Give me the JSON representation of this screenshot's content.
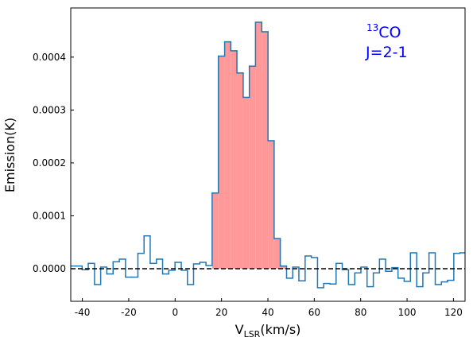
{
  "chart_data": {
    "type": "step",
    "x": [
      -44.1,
      -41.4,
      -38.8,
      -36.1,
      -33.4,
      -30.8,
      -28.1,
      -25.4,
      -22.7,
      -20.1,
      -17.4,
      -14.7,
      -12.1,
      -9.4,
      -6.7,
      -4.1,
      -1.4,
      1.3,
      4.0,
      6.6,
      9.3,
      12.0,
      14.6,
      17.3,
      20.0,
      22.7,
      25.3,
      28.0,
      30.7,
      33.3,
      36.0,
      38.7,
      41.4,
      44.0,
      46.7,
      49.4,
      52.0,
      54.7,
      57.4,
      60.1,
      62.7,
      65.4,
      68.1,
      70.7,
      73.4,
      76.1,
      78.8,
      81.4,
      84.1,
      86.8,
      89.4,
      92.1,
      94.8,
      97.4,
      100.1,
      102.8,
      105.5,
      108.1,
      110.8,
      113.5,
      116.1,
      118.8,
      121.5,
      124.1
    ],
    "series": [
      {
        "color": "#1f77b4",
        "values": [
          5e-06,
          5e-06,
          -2e-06,
          1e-05,
          -3e-05,
          3e-06,
          -1e-05,
          1.3e-05,
          1.8e-05,
          -1.6e-05,
          -1.6e-05,
          2.9e-05,
          6.2e-05,
          1e-05,
          1.8e-05,
          -1e-05,
          -3e-06,
          1.2e-05,
          -3e-06,
          -3e-05,
          9e-06,
          1.2e-05,
          6e-06,
          0.000143,
          0.000402,
          0.000429,
          0.000412,
          0.00037,
          0.000324,
          0.000383,
          0.000466,
          0.000448,
          0.000242,
          5.7e-05,
          5e-06,
          -1.8e-05,
          3e-06,
          -2.3e-05,
          2.4e-05,
          2.1e-05,
          -3.6e-05,
          -2.8e-05,
          -2.9e-05,
          1e-05,
          -2e-06,
          -3e-05,
          -8e-06,
          3e-06,
          -3.4e-05,
          -8e-06,
          1.8e-05,
          -5e-06,
          2e-06,
          -1.8e-05,
          -2.4e-05,
          3e-05,
          -3.4e-05,
          -8e-06,
          3e-05,
          -3e-05,
          -2.5e-05,
          -2.2e-05,
          2.9e-05,
          3e-05
        ]
      }
    ],
    "fill_region": [
      16,
      48
    ],
    "fill_color": "#ff9999",
    "hline": 0,
    "xlim": [
      -45,
      125
    ],
    "ylim": [
      -6.17e-05,
      0.000493
    ],
    "xticks": [
      -40,
      -20,
      0,
      20,
      40,
      60,
      80,
      100,
      120
    ],
    "yticks": [
      {
        "value": 0,
        "label": "0.0000"
      },
      {
        "value": 0.0001,
        "label": "0.0001"
      },
      {
        "value": 0.0002,
        "label": "0.0002"
      },
      {
        "value": 0.0003,
        "label": "0.0003"
      },
      {
        "value": 0.0004,
        "label": "0.0004"
      }
    ],
    "xlabel": {
      "main": "V",
      "sub": "LSR",
      "rest": "(km/s)"
    },
    "ylabel": "Emission(K)",
    "annotation": {
      "sup": "13",
      "species": "CO",
      "line": "J=2-1",
      "color": "#0000ff"
    }
  }
}
